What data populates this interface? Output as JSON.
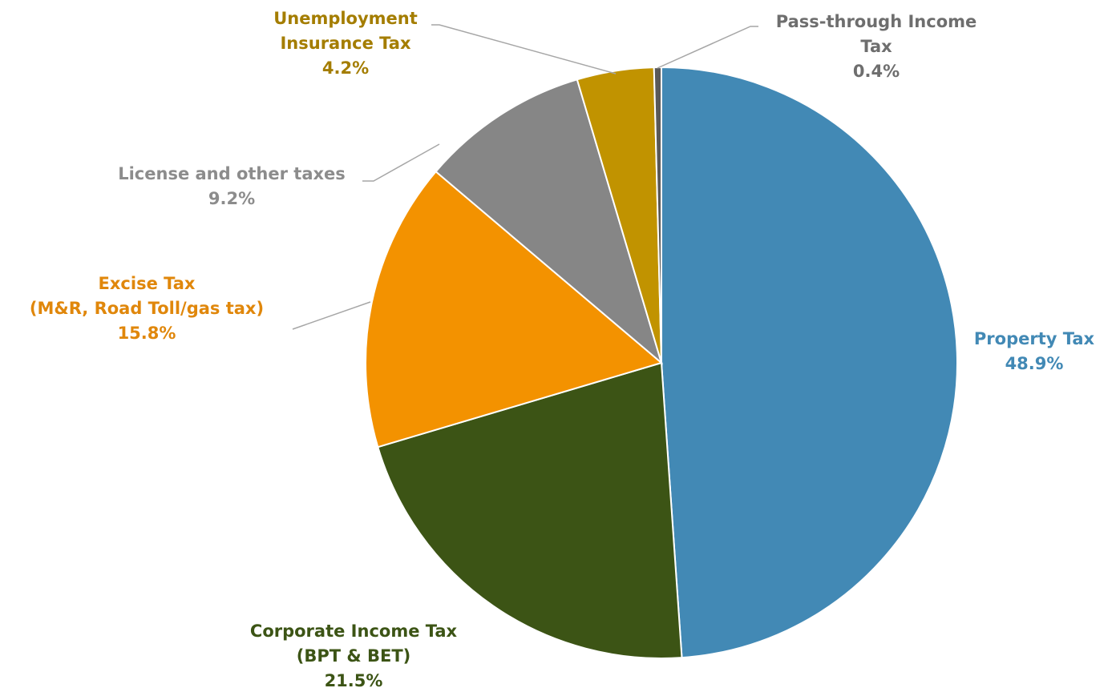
{
  "chart_data": {
    "type": "pie",
    "title": "",
    "start_angle_deg": 0,
    "direction": "clockwise",
    "legend": "none",
    "slices": [
      {
        "name_lines": [
          "Property Tax"
        ],
        "value": 48.9,
        "value_label": "48.9%",
        "color": "#4289b5",
        "label_color": "#4289b5"
      },
      {
        "name_lines": [
          "Corporate Income Tax",
          "(BPT & BET)"
        ],
        "value": 21.5,
        "value_label": "21.5%",
        "color": "#3c5415",
        "label_color": "#3c5415"
      },
      {
        "name_lines": [
          "Excise Tax",
          "(M&R, Road Toll/gas tax)"
        ],
        "value": 15.8,
        "value_label": "15.8%",
        "color": "#f39200",
        "label_color": "#e0870b"
      },
      {
        "name_lines": [
          "License and other taxes"
        ],
        "value": 9.2,
        "value_label": "9.2%",
        "color": "#868686",
        "label_color": "#8c8c8c"
      },
      {
        "name_lines": [
          "Unemployment",
          "Insurance Tax"
        ],
        "value": 4.2,
        "value_label": "4.2%",
        "color": "#c19300",
        "label_color": "#a47d00"
      },
      {
        "name_lines": [
          "Pass-through Income",
          "Tax"
        ],
        "value": 0.4,
        "value_label": "0.4%",
        "color": "#595959",
        "label_color": "#6e6e6e"
      }
    ]
  }
}
